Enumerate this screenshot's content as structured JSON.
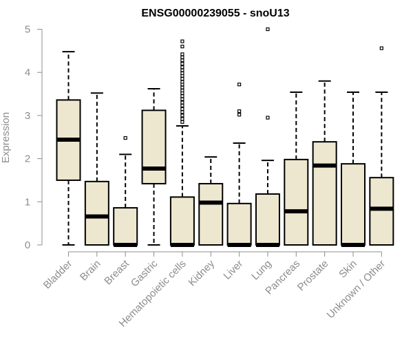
{
  "chart_data": {
    "type": "boxplot",
    "title": "ENSG00000239055 - snoU13",
    "ylabel": "Expression",
    "xlabel": "",
    "ylim": [
      0,
      5
    ],
    "yticks": [
      0,
      1,
      2,
      3,
      4,
      5
    ],
    "grid": false,
    "legend": "none",
    "colors": {
      "box_fill": "#ede7cf",
      "box_stroke": "#000000",
      "axis": "#8c8c8c",
      "title": "#000000"
    },
    "categories": [
      "Bladder",
      "Brain",
      "Breast",
      "Gastric",
      "Hematopoietic cells",
      "Kidney",
      "Liver",
      "Lung",
      "Pancreas",
      "Prostate",
      "Skin",
      "Unknown / Other"
    ],
    "boxes": [
      {
        "category": "Bladder",
        "whisker_low": 0.0,
        "q1": 1.5,
        "median": 2.44,
        "q3": 3.36,
        "whisker_high": 4.48,
        "outliers": []
      },
      {
        "category": "Brain",
        "whisker_low": 0.0,
        "q1": 0.0,
        "median": 0.66,
        "q3": 1.47,
        "whisker_high": 3.52,
        "outliers": []
      },
      {
        "category": "Breast",
        "whisker_low": 0.0,
        "q1": 0.0,
        "median": 0.0,
        "q3": 0.86,
        "whisker_high": 2.1,
        "outliers": [
          2.48
        ]
      },
      {
        "category": "Gastric",
        "whisker_low": 0.0,
        "q1": 1.42,
        "median": 1.77,
        "q3": 3.12,
        "whisker_high": 3.62,
        "outliers": []
      },
      {
        "category": "Hematopoietic cells",
        "whisker_low": 0.0,
        "q1": 0.0,
        "median": 0.0,
        "q3": 1.11,
        "whisker_high": 2.76,
        "outliers": [
          2.85,
          2.92,
          3.0,
          3.08,
          3.15,
          3.23,
          3.3,
          3.38,
          3.45,
          3.52,
          3.58,
          3.65,
          3.72,
          3.78,
          3.85,
          3.92,
          3.98,
          4.05,
          4.12,
          4.2,
          4.28,
          4.35,
          4.42,
          4.6,
          4.72
        ]
      },
      {
        "category": "Kidney",
        "whisker_low": 0.0,
        "q1": 0.0,
        "median": 0.98,
        "q3": 1.42,
        "whisker_high": 2.04,
        "outliers": []
      },
      {
        "category": "Liver",
        "whisker_low": 0.0,
        "q1": 0.0,
        "median": 0.0,
        "q3": 0.96,
        "whisker_high": 2.36,
        "outliers": [
          3.02,
          3.1,
          3.72
        ]
      },
      {
        "category": "Lung",
        "whisker_low": 0.0,
        "q1": 0.0,
        "median": 0.0,
        "q3": 1.18,
        "whisker_high": 1.96,
        "outliers": [
          2.95,
          5.0
        ]
      },
      {
        "category": "Pancreas",
        "whisker_low": 0.0,
        "q1": 0.0,
        "median": 0.78,
        "q3": 1.98,
        "whisker_high": 3.54,
        "outliers": []
      },
      {
        "category": "Prostate",
        "whisker_low": 0.0,
        "q1": 0.0,
        "median": 1.84,
        "q3": 2.39,
        "whisker_high": 3.8,
        "outliers": []
      },
      {
        "category": "Skin",
        "whisker_low": 0.0,
        "q1": 0.0,
        "median": 0.0,
        "q3": 1.88,
        "whisker_high": 3.54,
        "outliers": []
      },
      {
        "category": "Unknown / Other",
        "whisker_low": 0.0,
        "q1": 0.0,
        "median": 0.84,
        "q3": 1.56,
        "whisker_high": 3.54,
        "outliers": [
          4.56
        ]
      }
    ]
  }
}
